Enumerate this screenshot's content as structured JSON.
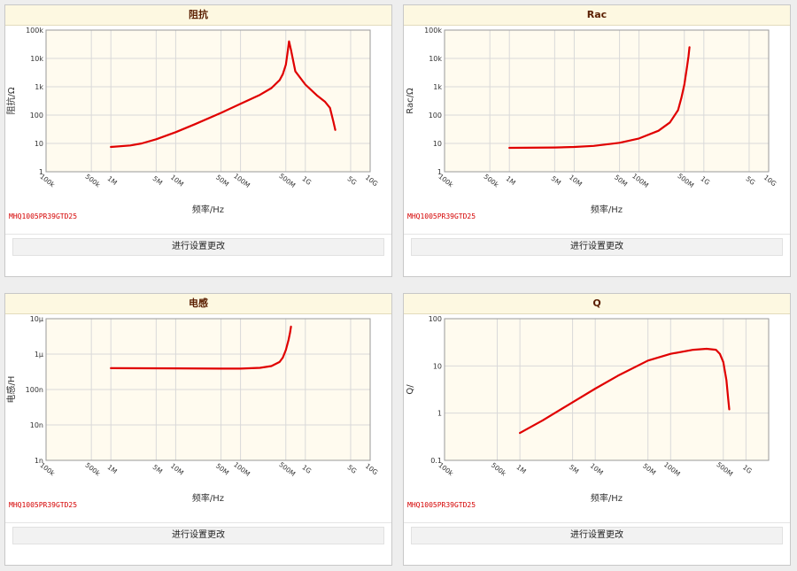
{
  "part_number": "MHQ1005PR39GTD25",
  "settings_button_label": "进行设置更改",
  "colors": {
    "curve": "#e00000",
    "plot_bg": "#fffbef",
    "grid": "#d9d9d9",
    "header_bg": "#fdf8e1"
  },
  "chart_data": [
    {
      "type": "line",
      "title": "阻抗",
      "xlabel": "频率/Hz",
      "ylabel": "阻抗/Ω",
      "x_scale": "log",
      "y_scale": "log",
      "xlim": [
        100000,
        10000000000
      ],
      "ylim": [
        1,
        100000
      ],
      "x_ticks": [
        {
          "value": 100000,
          "label": "100k"
        },
        {
          "value": 500000,
          "label": "500k"
        },
        {
          "value": 1000000,
          "label": "1M"
        },
        {
          "value": 5000000,
          "label": "5M"
        },
        {
          "value": 10000000,
          "label": "10M"
        },
        {
          "value": 50000000,
          "label": "50M"
        },
        {
          "value": 100000000,
          "label": "100M"
        },
        {
          "value": 500000000,
          "label": "500M"
        },
        {
          "value": 1000000000,
          "label": "1G"
        },
        {
          "value": 5000000000,
          "label": "5G"
        },
        {
          "value": 10000000000,
          "label": "10G"
        }
      ],
      "y_ticks": [
        {
          "value": 1,
          "label": "1"
        },
        {
          "value": 10,
          "label": "10"
        },
        {
          "value": 100,
          "label": "100"
        },
        {
          "value": 1000,
          "label": "1k"
        },
        {
          "value": 10000,
          "label": "10k"
        },
        {
          "value": 100000,
          "label": "100k"
        }
      ],
      "series": [
        {
          "x": [
            1000000,
            2000000,
            3000000,
            5000000,
            10000000,
            20000000,
            50000000,
            100000000,
            200000000,
            300000000,
            400000000,
            450000000,
            500000000,
            530000000,
            560000000,
            600000000,
            700000000,
            1000000000,
            1500000000,
            2000000000,
            2400000000,
            2700000000,
            2900000000
          ],
          "y": [
            7.5,
            8.5,
            10,
            14,
            25,
            48,
            120,
            250,
            520,
            900,
            1700,
            2800,
            6000,
            15000,
            40000,
            20000,
            3500,
            1200,
            500,
            300,
            180,
            60,
            30
          ]
        }
      ]
    },
    {
      "type": "line",
      "title": "Rac",
      "xlabel": "频率/Hz",
      "ylabel": "Rac/Ω",
      "x_scale": "log",
      "y_scale": "log",
      "xlim": [
        100000,
        10000000000
      ],
      "ylim": [
        1,
        100000
      ],
      "x_ticks": [
        {
          "value": 100000,
          "label": "100k"
        },
        {
          "value": 500000,
          "label": "500k"
        },
        {
          "value": 1000000,
          "label": "1M"
        },
        {
          "value": 5000000,
          "label": "5M"
        },
        {
          "value": 10000000,
          "label": "10M"
        },
        {
          "value": 50000000,
          "label": "50M"
        },
        {
          "value": 100000000,
          "label": "100M"
        },
        {
          "value": 500000000,
          "label": "500M"
        },
        {
          "value": 1000000000,
          "label": "1G"
        },
        {
          "value": 5000000000,
          "label": "5G"
        },
        {
          "value": 10000000000,
          "label": "10G"
        }
      ],
      "y_ticks": [
        {
          "value": 1,
          "label": "1"
        },
        {
          "value": 10,
          "label": "10"
        },
        {
          "value": 100,
          "label": "100"
        },
        {
          "value": 1000,
          "label": "1k"
        },
        {
          "value": 10000,
          "label": "10k"
        },
        {
          "value": 100000,
          "label": "100k"
        }
      ],
      "series": [
        {
          "x": [
            1000000,
            5000000,
            10000000,
            20000000,
            50000000,
            100000000,
            200000000,
            300000000,
            400000000,
            450000000,
            500000000,
            550000000,
            580000000,
            600000000
          ],
          "y": [
            7,
            7.2,
            7.5,
            8.2,
            10.5,
            15,
            28,
            55,
            150,
            400,
            1200,
            5000,
            12000,
            25000
          ]
        }
      ]
    },
    {
      "type": "line",
      "title": "电感",
      "xlabel": "频率/Hz",
      "ylabel": "电感/H",
      "x_scale": "log",
      "y_scale": "log",
      "xlim": [
        100000,
        10000000000
      ],
      "ylim": [
        1e-09,
        1e-05
      ],
      "x_ticks": [
        {
          "value": 100000,
          "label": "100k"
        },
        {
          "value": 500000,
          "label": "500k"
        },
        {
          "value": 1000000,
          "label": "1M"
        },
        {
          "value": 5000000,
          "label": "5M"
        },
        {
          "value": 10000000,
          "label": "10M"
        },
        {
          "value": 50000000,
          "label": "50M"
        },
        {
          "value": 100000000,
          "label": "100M"
        },
        {
          "value": 500000000,
          "label": "500M"
        },
        {
          "value": 1000000000,
          "label": "1G"
        },
        {
          "value": 5000000000,
          "label": "5G"
        },
        {
          "value": 10000000000,
          "label": "10G"
        }
      ],
      "y_ticks": [
        {
          "value": 1e-09,
          "label": "1n"
        },
        {
          "value": 1e-08,
          "label": "10n"
        },
        {
          "value": 1e-07,
          "label": "100n"
        },
        {
          "value": 1e-06,
          "label": "1μ"
        },
        {
          "value": 1e-05,
          "label": "10μ"
        }
      ],
      "series": [
        {
          "x": [
            1000000,
            10000000,
            50000000,
            100000000,
            200000000,
            300000000,
            400000000,
            450000000,
            500000000,
            550000000,
            580000000,
            600000000
          ],
          "y": [
            4e-07,
            3.95e-07,
            3.9e-07,
            3.9e-07,
            4.1e-07,
            4.6e-07,
            6e-07,
            8e-07,
            1.3e-06,
            2.5e-06,
            4e-06,
            6e-06
          ]
        }
      ]
    },
    {
      "type": "line",
      "title": "Q",
      "xlabel": "频率/Hz",
      "ylabel": "Q/",
      "x_scale": "log",
      "y_scale": "log",
      "xlim": [
        100000,
        2000000000
      ],
      "ylim": [
        0.1,
        100
      ],
      "x_ticks": [
        {
          "value": 100000,
          "label": "100k"
        },
        {
          "value": 500000,
          "label": "500k"
        },
        {
          "value": 1000000,
          "label": "1M"
        },
        {
          "value": 5000000,
          "label": "5M"
        },
        {
          "value": 10000000,
          "label": "10M"
        },
        {
          "value": 50000000,
          "label": "50M"
        },
        {
          "value": 100000000,
          "label": "100M"
        },
        {
          "value": 500000000,
          "label": "500M"
        },
        {
          "value": 1000000000,
          "label": "1G"
        }
      ],
      "y_ticks": [
        {
          "value": 0.1,
          "label": "0.1"
        },
        {
          "value": 1,
          "label": "1"
        },
        {
          "value": 10,
          "label": "10"
        },
        {
          "value": 100,
          "label": "100"
        }
      ],
      "series": [
        {
          "x": [
            1000000,
            2000000,
            5000000,
            10000000,
            20000000,
            50000000,
            100000000,
            200000000,
            300000000,
            400000000,
            450000000,
            500000000,
            550000000,
            580000000,
            600000000
          ],
          "y": [
            0.38,
            0.7,
            1.7,
            3.3,
            6.2,
            13,
            18,
            22,
            23,
            22,
            18,
            12,
            5,
            2,
            1.2
          ]
        }
      ]
    }
  ]
}
